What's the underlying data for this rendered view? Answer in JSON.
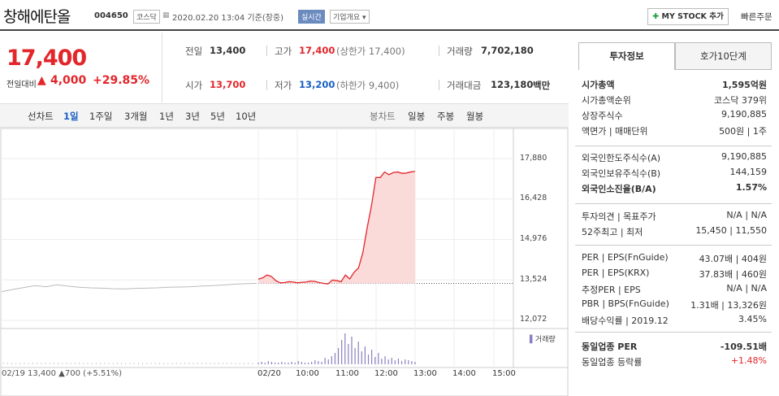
{
  "header": {
    "name": "창해에탄올",
    "code": "004650",
    "market": "코스닥",
    "date_text": "2020.02.20 13:04 기준(장중)",
    "realtime": "실시간",
    "company_info": "기업개요",
    "mystock": "MY STOCK 추가",
    "quick_order": "빠른주문"
  },
  "price": {
    "current": "17,400",
    "change_label": "전일대비",
    "change": "4,000",
    "change_pct": "+29.85%"
  },
  "summary": {
    "prev_label": "전일",
    "prev": "13,400",
    "high_label": "고가",
    "high": "17,400",
    "upper_limit": "(상한가 17,400)",
    "volume_label": "거래량",
    "volume": "7,702,180",
    "open_label": "시가",
    "open": "13,700",
    "low_label": "저가",
    "low": "13,200",
    "lower_limit": "(하한가 9,400)",
    "amount_label": "거래대금",
    "amount": "123,180",
    "amount_unit": "백만"
  },
  "chart_tabs": {
    "line_chart": "선차트",
    "line_items": [
      "1일",
      "1주일",
      "3개월",
      "1년",
      "3년",
      "5년",
      "10년"
    ],
    "candle_chart": "봉차트",
    "candle_items": [
      "일봉",
      "주봉",
      "월봉"
    ]
  },
  "panel": {
    "tabs": [
      "투자정보",
      "호가10단계"
    ],
    "rows1": [
      [
        "시가총액",
        "1,595억원"
      ],
      [
        "시가총액순위",
        "코스닥 379위"
      ],
      [
        "상장주식수",
        "9,190,885"
      ],
      [
        "액면가 | 매매단위",
        "500원 | 1주"
      ]
    ],
    "rows2": [
      [
        "외국인한도주식수(A)",
        "9,190,885"
      ],
      [
        "외국인보유주식수(B)",
        "144,159"
      ],
      [
        "외국인소진율(B/A)",
        "1.57%"
      ]
    ],
    "rows3": [
      [
        "투자의견 | 목표주가",
        "N/A | N/A"
      ],
      [
        "52주최고 | 최저",
        "15,450 | 11,550"
      ]
    ],
    "rows4": [
      [
        "PER | EPS(FnGuide)",
        "43.07배 | 404원"
      ],
      [
        "PER | EPS(KRX)",
        "37.83배 | 460원"
      ],
      [
        "추정PER | EPS",
        "N/A | N/A"
      ],
      [
        "PBR | BPS(FnGuide)",
        "1.31배 | 13,326원"
      ],
      [
        "배당수익률 | 2019.12",
        "3.45%"
      ]
    ],
    "rows5": [
      [
        "동일업종 PER",
        "-109.51배"
      ],
      [
        "동일업종 등락률",
        "+1.48%"
      ]
    ]
  },
  "chart_data": {
    "type": "line",
    "y_ticks": [
      "17,880",
      "16,428",
      "14,976",
      "13,524",
      "12,072"
    ],
    "ylim": [
      12072,
      17880
    ],
    "prev_close": 13400,
    "x_ticks": [
      "02/20",
      "10:00",
      "11:00",
      "12:00",
      "13:00",
      "14:00",
      "15:00"
    ],
    "volume_label": "거래량",
    "footer": "02/19 13,400 ▲700 (+5.51%)",
    "prev_day_series": [
      13100,
      13180,
      13250,
      13320,
      13280,
      13350,
      13300,
      13260,
      13240,
      13230,
      13210,
      13200,
      13220,
      13230,
      13240,
      13260,
      13270,
      13280,
      13300,
      13320,
      13340,
      13370,
      13390,
      13400
    ],
    "today_series": [
      13550,
      13600,
      13700,
      13650,
      13500,
      13420,
      13430,
      13460,
      13450,
      13420,
      13440,
      13450,
      13480,
      13470,
      13430,
      13400,
      13380,
      13520,
      13500,
      13460,
      13700,
      13560,
      13800,
      13950,
      14500,
      15400,
      16200,
      17200,
      17200,
      17400,
      17300,
      17380,
      17400,
      17350,
      17360,
      17400,
      17420
    ]
  }
}
